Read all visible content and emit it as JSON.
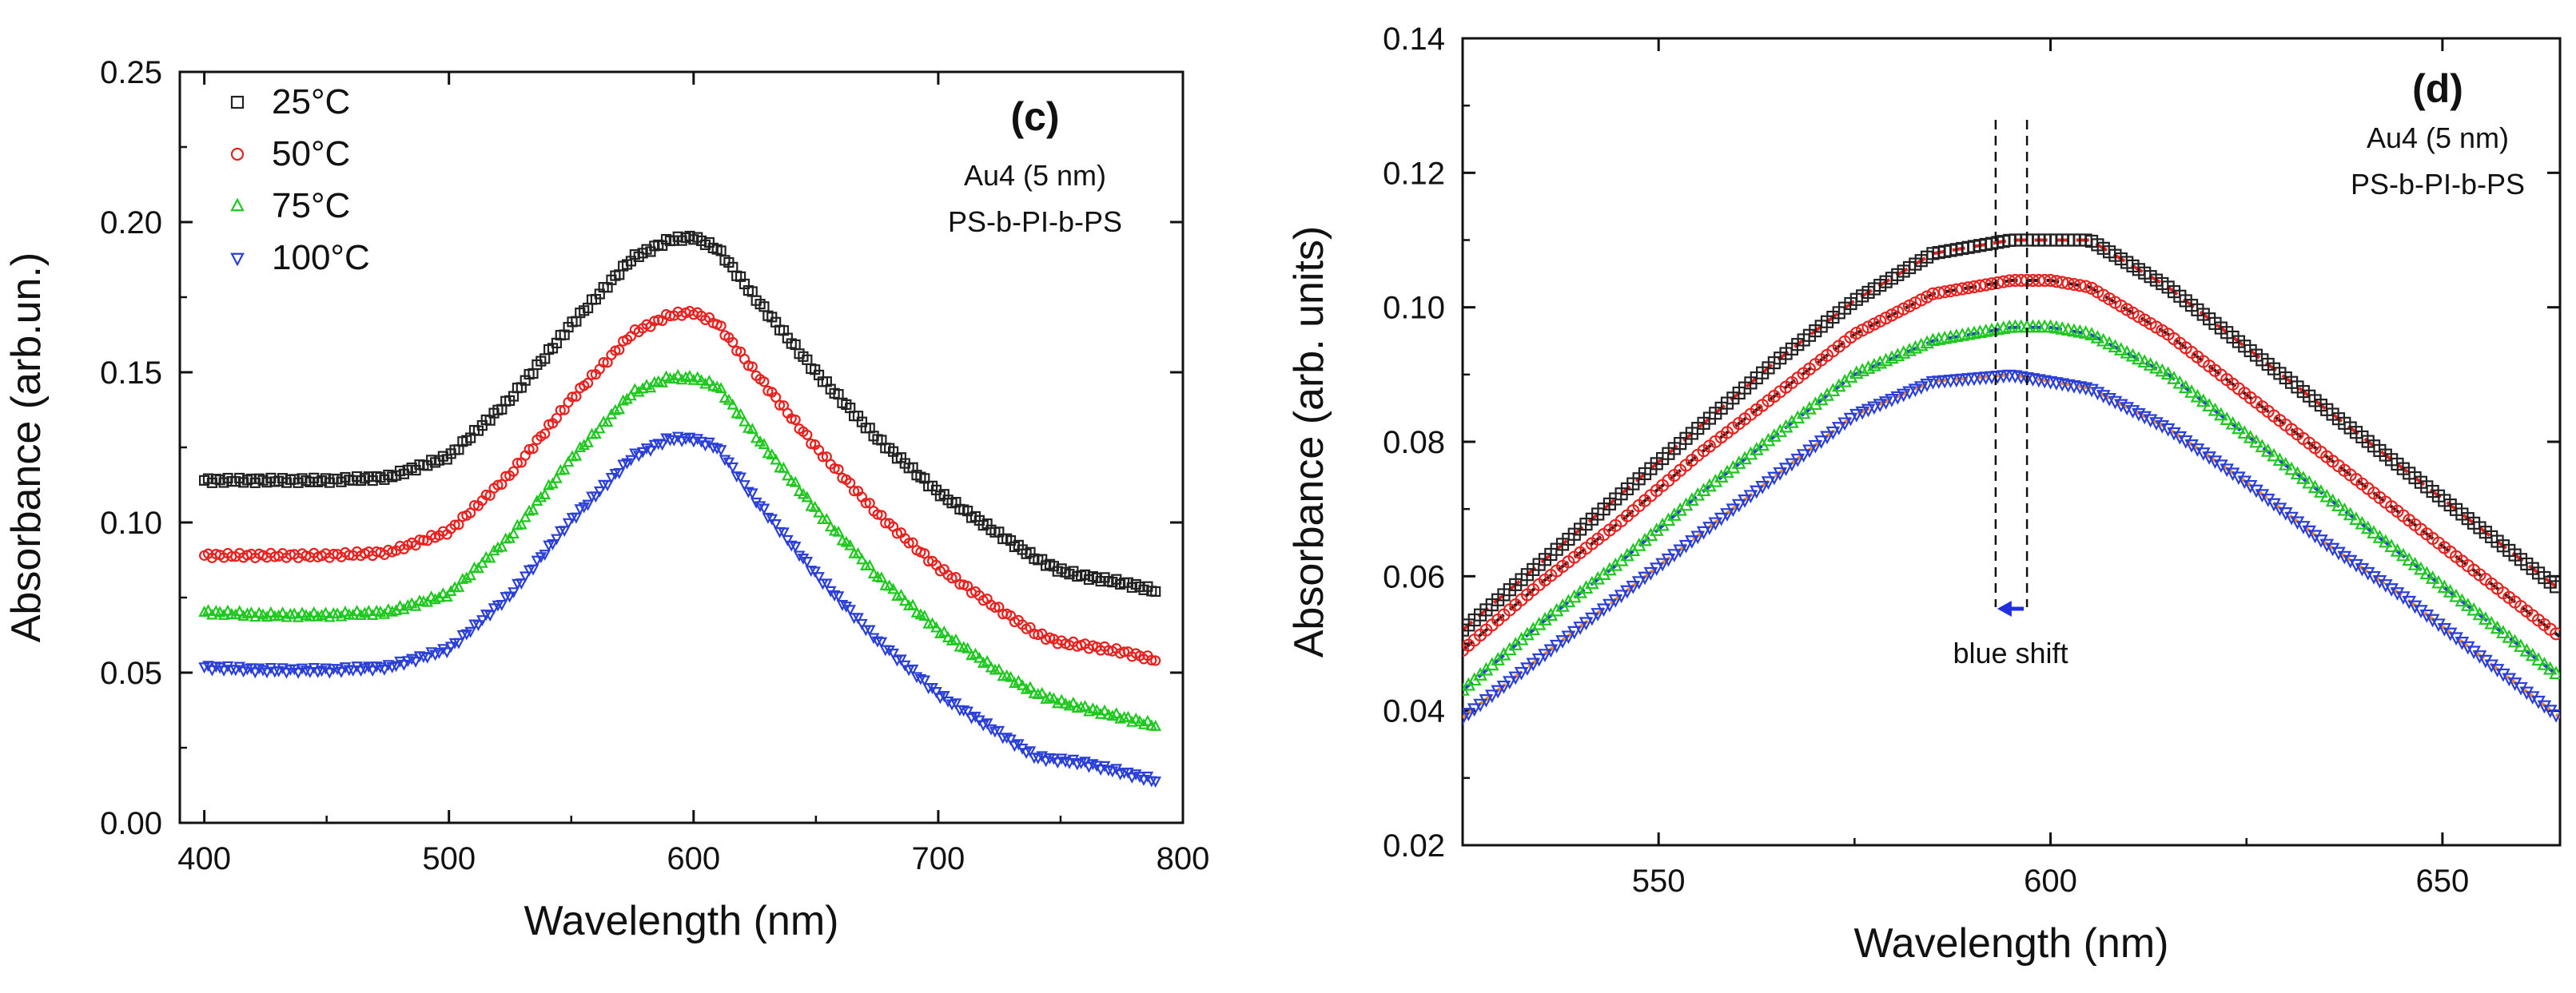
{
  "chart_data": [
    {
      "type": "scatter",
      "panel_label": "(c)",
      "annotation_lines": [
        "Au4 (5 nm)",
        "PS-b-PI-b-PS"
      ],
      "xlabel": "Wavelength (nm)",
      "ylabel": "Absorbance (arb.un.)",
      "xlim": [
        390,
        800
      ],
      "ylim": [
        0.0,
        0.25
      ],
      "xticks": [
        "400",
        "500",
        "600",
        "700",
        "800"
      ],
      "yticks": [
        "0.00",
        "0.05",
        "0.10",
        "0.15",
        "0.20",
        "0.25"
      ],
      "legend_position": "top-left",
      "series": [
        {
          "name": "25°C",
          "color": "#222222",
          "marker": "square",
          "x": [
            400,
            425,
            450,
            475,
            500,
            525,
            550,
            575,
            590,
            600,
            610,
            625,
            650,
            675,
            700,
            725,
            740,
            750,
            760,
            775,
            790
          ],
          "y": [
            0.114,
            0.114,
            0.114,
            0.115,
            0.122,
            0.141,
            0.166,
            0.188,
            0.194,
            0.195,
            0.191,
            0.175,
            0.15,
            0.128,
            0.11,
            0.096,
            0.088,
            0.084,
            0.082,
            0.08,
            0.077
          ]
        },
        {
          "name": "50°C",
          "color": "#e8211f",
          "marker": "circle",
          "x": [
            400,
            425,
            450,
            475,
            500,
            525,
            550,
            575,
            590,
            600,
            610,
            625,
            650,
            675,
            700,
            725,
            740,
            750,
            760,
            775,
            790
          ],
          "y": [
            0.089,
            0.089,
            0.089,
            0.09,
            0.097,
            0.116,
            0.141,
            0.163,
            0.169,
            0.17,
            0.166,
            0.15,
            0.125,
            0.103,
            0.085,
            0.071,
            0.063,
            0.06,
            0.059,
            0.057,
            0.054
          ]
        },
        {
          "name": "75°C",
          "color": "#1ec81e",
          "marker": "triangle-up",
          "x": [
            400,
            425,
            450,
            475,
            500,
            525,
            550,
            575,
            590,
            600,
            610,
            625,
            650,
            675,
            700,
            725,
            740,
            750,
            760,
            775,
            790
          ],
          "y": [
            0.07,
            0.069,
            0.069,
            0.07,
            0.076,
            0.095,
            0.121,
            0.143,
            0.148,
            0.148,
            0.145,
            0.129,
            0.104,
            0.082,
            0.064,
            0.05,
            0.043,
            0.04,
            0.038,
            0.035,
            0.032
          ]
        },
        {
          "name": "100°C",
          "color": "#2a3fd8",
          "marker": "triangle-down",
          "x": [
            400,
            425,
            450,
            475,
            500,
            525,
            550,
            575,
            590,
            600,
            610,
            625,
            650,
            675,
            700,
            725,
            740,
            750,
            760,
            775,
            790
          ],
          "y": [
            0.052,
            0.051,
            0.051,
            0.052,
            0.058,
            0.076,
            0.101,
            0.122,
            0.128,
            0.128,
            0.125,
            0.108,
            0.083,
            0.061,
            0.043,
            0.03,
            0.022,
            0.021,
            0.02,
            0.017,
            0.014
          ]
        }
      ]
    },
    {
      "type": "scatter",
      "panel_label": "(d)",
      "annotation_lines": [
        "Au4 (5 nm)",
        "PS-b-PI-b-PS"
      ],
      "arrow_label": "blue shift",
      "peak_markers_x": [
        593,
        597
      ],
      "xlabel": "Wavelength (nm)",
      "ylabel": "Absorbance (arb. units)",
      "xlim": [
        525,
        665
      ],
      "ylim": [
        0.02,
        0.14
      ],
      "xticks": [
        "550",
        "600",
        "650"
      ],
      "yticks": [
        "0.02",
        "0.04",
        "0.06",
        "0.08",
        "0.10",
        "0.12",
        "0.14"
      ],
      "series": [
        {
          "name": "25°C",
          "color": "#222222",
          "marker": "square",
          "fit_color": "#e8211f",
          "x": [
            525,
            535,
            545,
            555,
            565,
            575,
            585,
            595,
            600,
            605,
            615,
            625,
            635,
            645,
            655,
            665
          ],
          "y": [
            0.052,
            0.062,
            0.072,
            0.082,
            0.092,
            0.101,
            0.108,
            0.11,
            0.11,
            0.11,
            0.103,
            0.094,
            0.085,
            0.076,
            0.067,
            0.058
          ]
        },
        {
          "name": "50°C",
          "color": "#e8211f",
          "marker": "circle",
          "fit_color": "#222222",
          "x": [
            525,
            535,
            545,
            555,
            565,
            575,
            585,
            595,
            600,
            605,
            615,
            625,
            635,
            645,
            655,
            665
          ],
          "y": [
            0.049,
            0.059,
            0.068,
            0.078,
            0.087,
            0.096,
            0.102,
            0.104,
            0.104,
            0.103,
            0.096,
            0.087,
            0.078,
            0.069,
            0.06,
            0.051
          ]
        },
        {
          "name": "75°C",
          "color": "#1ec81e",
          "marker": "triangle-up",
          "fit_color": "#2a3fd8",
          "x": [
            525,
            535,
            545,
            555,
            565,
            575,
            585,
            595,
            600,
            605,
            615,
            625,
            635,
            645,
            655,
            665
          ],
          "y": [
            0.043,
            0.053,
            0.062,
            0.072,
            0.081,
            0.09,
            0.095,
            0.097,
            0.097,
            0.096,
            0.09,
            0.081,
            0.072,
            0.063,
            0.054,
            0.045
          ]
        },
        {
          "name": "100°C",
          "color": "#2a3fd8",
          "marker": "triangle-down",
          "fit_color": "#f08a24",
          "x": [
            525,
            535,
            545,
            555,
            565,
            575,
            585,
            595,
            600,
            605,
            615,
            625,
            635,
            645,
            655,
            665
          ],
          "y": [
            0.039,
            0.048,
            0.057,
            0.066,
            0.075,
            0.084,
            0.089,
            0.09,
            0.089,
            0.088,
            0.082,
            0.074,
            0.065,
            0.057,
            0.048,
            0.039
          ]
        }
      ]
    }
  ]
}
